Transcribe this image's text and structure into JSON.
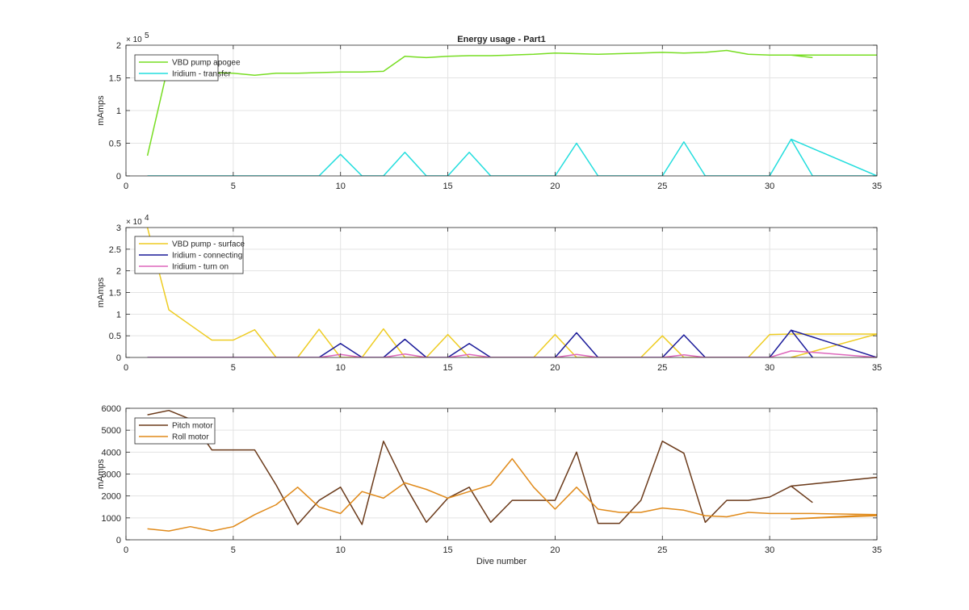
{
  "figure": {
    "title": "Energy usage - Part1"
  },
  "chart_data": [
    {
      "type": "line",
      "title": "Energy usage - Part1",
      "xlabel": "",
      "ylabel": "mAmps",
      "xlim": [
        0,
        35
      ],
      "ylim": [
        0,
        200000
      ],
      "xticks": [
        0,
        5,
        10,
        15,
        20,
        25,
        30,
        35
      ],
      "yticks": [
        0,
        50000,
        100000,
        150000,
        200000
      ],
      "yticklabels": [
        "0",
        "0.5",
        "1",
        "1.5",
        "2"
      ],
      "exponent_label": "× 10",
      "exponent_power": "5",
      "grid": true,
      "legend": "top-left",
      "series": [
        {
          "name": "VBD pump apogee",
          "color": "#77dd22",
          "x": [
            1,
            2,
            3,
            4,
            5,
            6,
            7,
            8,
            9,
            10,
            11,
            12,
            13,
            14,
            15,
            16,
            17,
            18,
            19,
            20,
            21,
            22,
            23,
            24,
            25,
            26,
            27,
            28,
            29,
            30,
            31,
            32,
            33,
            34,
            35,
            31,
            32
          ],
          "y": [
            31000,
            173000,
            160000,
            158000,
            157000,
            154000,
            157000,
            157000,
            158000,
            159000,
            159000,
            160000,
            183000,
            181000,
            183000,
            184000,
            184000,
            185000,
            186000,
            188000,
            187000,
            186000,
            187000,
            188000,
            189000,
            188000,
            189000,
            192000,
            186000,
            185000,
            185000,
            185000,
            185000,
            185000,
            185000,
            185000,
            181000
          ]
        },
        {
          "name": "Iridium - transfer",
          "color": "#22dddd",
          "x": [
            1,
            2,
            3,
            4,
            5,
            6,
            7,
            8,
            9,
            10,
            11,
            12,
            13,
            14,
            15,
            16,
            17,
            18,
            19,
            20,
            21,
            22,
            23,
            24,
            25,
            26,
            27,
            28,
            29,
            30,
            31,
            32,
            35
          ],
          "y": [
            0,
            0,
            0,
            0,
            0,
            0,
            0,
            0,
            0,
            33000,
            0,
            0,
            36000,
            0,
            0,
            36000,
            0,
            0,
            0,
            0,
            50000,
            0,
            0,
            0,
            0,
            52000,
            0,
            0,
            0,
            0,
            56000,
            0,
            0
          ],
          "extra_segments": [
            {
              "x": [
                31,
                35
              ],
              "y": [
                56000,
                0
              ]
            }
          ]
        }
      ]
    },
    {
      "type": "line",
      "title": "",
      "xlabel": "",
      "ylabel": "mAmps",
      "xlim": [
        0,
        35
      ],
      "ylim": [
        0,
        30000
      ],
      "xticks": [
        0,
        5,
        10,
        15,
        20,
        25,
        30,
        35
      ],
      "yticks": [
        0,
        5000,
        10000,
        15000,
        20000,
        25000,
        30000
      ],
      "yticklabels": [
        "0",
        "0.5",
        "1",
        "1.5",
        "2",
        "2.5",
        "3"
      ],
      "exponent_label": "× 10",
      "exponent_power": "4",
      "grid": true,
      "legend": "top-left",
      "series": [
        {
          "name": "VBD pump - surface",
          "color": "#eecc22",
          "x": [
            1,
            2,
            3,
            4,
            5,
            6,
            7,
            8,
            9,
            10,
            11,
            12,
            13,
            14,
            15,
            16,
            17,
            18,
            19,
            20,
            21,
            22,
            23,
            24,
            25,
            26,
            27,
            28,
            29,
            30,
            31,
            32,
            33,
            34,
            35,
            31,
            35
          ],
          "y": [
            30000,
            11000,
            7500,
            4000,
            4000,
            6400,
            0,
            0,
            6500,
            0,
            0,
            6600,
            0,
            0,
            5300,
            0,
            0,
            0,
            0,
            5300,
            0,
            0,
            0,
            0,
            5000,
            0,
            0,
            0,
            0,
            5300,
            5400,
            5400,
            5400,
            5400,
            5400,
            0,
            5400
          ]
        },
        {
          "name": "Iridium - connecting",
          "color": "#1a1a99",
          "x": [
            1,
            2,
            3,
            4,
            5,
            6,
            7,
            8,
            9,
            10,
            11,
            12,
            13,
            14,
            15,
            16,
            17,
            18,
            19,
            20,
            21,
            22,
            23,
            24,
            25,
            26,
            27,
            28,
            29,
            30,
            31,
            32,
            31,
            35
          ],
          "y": [
            0,
            0,
            0,
            0,
            0,
            0,
            0,
            0,
            0,
            3200,
            0,
            0,
            4200,
            0,
            0,
            3200,
            0,
            0,
            0,
            0,
            5700,
            0,
            0,
            0,
            0,
            5200,
            0,
            0,
            0,
            0,
            6300,
            0,
            6300,
            0
          ]
        },
        {
          "name": "Iridium - turn on",
          "color": "#dd66bb",
          "x": [
            1,
            2,
            3,
            4,
            5,
            6,
            7,
            8,
            9,
            10,
            11,
            12,
            13,
            14,
            15,
            16,
            17,
            18,
            19,
            20,
            21,
            22,
            23,
            24,
            25,
            26,
            27,
            28,
            29,
            30,
            31,
            32,
            35
          ],
          "y": [
            0,
            0,
            0,
            0,
            0,
            0,
            0,
            0,
            0,
            700,
            0,
            0,
            800,
            0,
            0,
            700,
            0,
            0,
            0,
            0,
            700,
            0,
            0,
            0,
            0,
            600,
            0,
            0,
            0,
            0,
            1500,
            1200,
            0
          ]
        }
      ]
    },
    {
      "type": "line",
      "title": "",
      "xlabel": "Dive number",
      "ylabel": "mAmps",
      "xlim": [
        0,
        35
      ],
      "ylim": [
        0,
        6000
      ],
      "xticks": [
        0,
        5,
        10,
        15,
        20,
        25,
        30,
        35
      ],
      "yticks": [
        0,
        1000,
        2000,
        3000,
        4000,
        5000,
        6000
      ],
      "yticklabels": [
        "0",
        "1000",
        "2000",
        "3000",
        "4000",
        "5000",
        "6000"
      ],
      "exponent_label": "",
      "exponent_power": "",
      "grid": true,
      "legend": "top-left",
      "series": [
        {
          "name": "Pitch motor",
          "color": "#6b3a1a",
          "x": [
            1,
            2,
            3,
            4,
            5,
            6,
            7,
            8,
            9,
            10,
            11,
            12,
            13,
            14,
            15,
            16,
            17,
            18,
            19,
            20,
            21,
            22,
            23,
            24,
            25,
            26,
            27,
            28,
            29,
            30,
            31,
            32,
            33,
            34,
            35,
            31,
            32
          ],
          "y": [
            5700,
            5900,
            5500,
            4100,
            4100,
            4100,
            2500,
            700,
            1800,
            2400,
            700,
            4500,
            2500,
            800,
            1900,
            2400,
            800,
            1800,
            1800,
            1800,
            4000,
            750,
            750,
            1800,
            4500,
            3950,
            800,
            1800,
            1800,
            1950,
            2450,
            2550,
            2650,
            2750,
            2850,
            2450,
            1700
          ]
        },
        {
          "name": "Roll motor",
          "color": "#e08a1a",
          "x": [
            1,
            2,
            3,
            4,
            5,
            6,
            7,
            8,
            9,
            10,
            11,
            12,
            13,
            14,
            15,
            16,
            17,
            18,
            19,
            20,
            21,
            22,
            23,
            24,
            25,
            26,
            27,
            28,
            29,
            30,
            31,
            32,
            35,
            31,
            35
          ],
          "y": [
            500,
            400,
            600,
            400,
            600,
            1150,
            1600,
            2400,
            1500,
            1200,
            2200,
            1900,
            2600,
            2300,
            1900,
            2200,
            2500,
            3700,
            2400,
            1400,
            2400,
            1400,
            1250,
            1250,
            1450,
            1350,
            1100,
            1050,
            1250,
            1200,
            1200,
            1200,
            1150,
            950,
            1100
          ]
        }
      ]
    }
  ]
}
